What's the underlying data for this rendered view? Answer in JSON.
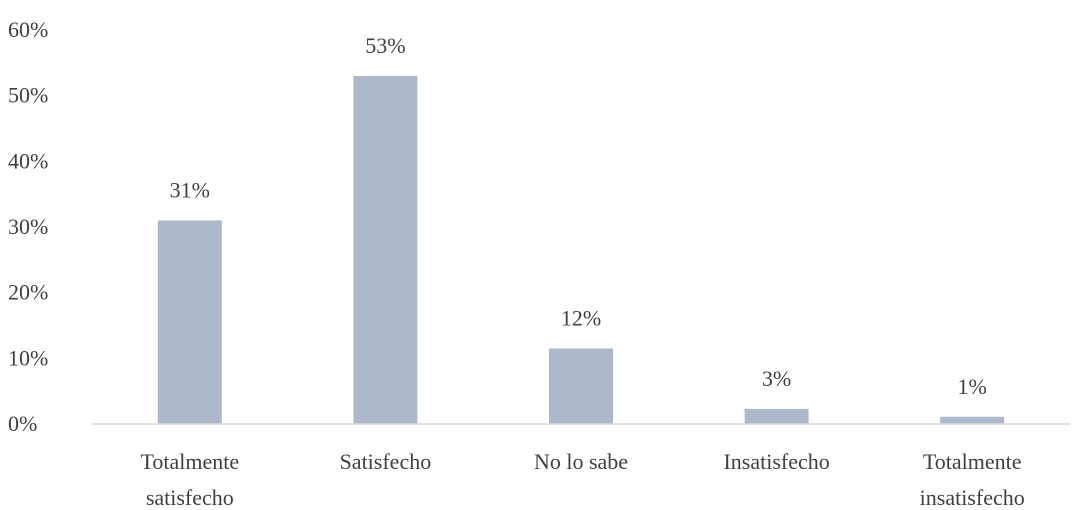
{
  "chart_data": {
    "type": "bar",
    "title": "",
    "xlabel": "",
    "ylabel": "",
    "categories": [
      [
        "Totalmente",
        "satisfecho"
      ],
      [
        "Satisfecho"
      ],
      [
        "No lo sabe"
      ],
      [
        "Insatisfecho"
      ],
      [
        "Totalmente",
        "insatisfecho"
      ]
    ],
    "values": [
      31,
      53,
      12,
      3,
      1
    ],
    "value_labels": [
      "31%",
      "53%",
      "12%",
      "3%",
      "1%"
    ],
    "bar_values_estimated": [
      0.31,
      0.53,
      0.115,
      0.023,
      0.011
    ],
    "ylim": [
      0,
      0.6
    ],
    "yticks": [
      0,
      0.1,
      0.2,
      0.3,
      0.4,
      0.5,
      0.6
    ],
    "ytick_labels": [
      "0%",
      "10%",
      "20%",
      "30%",
      "40%",
      "50%",
      "60%"
    ],
    "grid": false,
    "legend": "none",
    "bar_color": "#adb9ca",
    "axis_color": "#d9d9d9",
    "text_color": "#404040"
  }
}
